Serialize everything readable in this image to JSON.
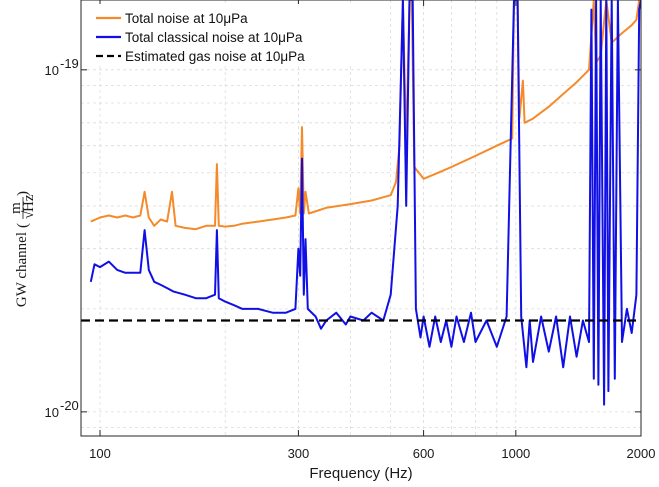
{
  "chart_data": {
    "type": "line",
    "title": "",
    "xlabel": "Frequency (Hz)",
    "ylabel": "GW channel",
    "ylabel_unit_numerator": "m",
    "ylabel_unit_denominator": "Hz",
    "xscale": "log",
    "yscale": "log",
    "xlim": [
      90,
      2000
    ],
    "ylim": [
      8.5e-21,
      1.6e-19
    ],
    "x_ticks": [
      {
        "value": 100,
        "label": "100"
      },
      {
        "value": 300,
        "label": "300"
      },
      {
        "value": 600,
        "label": "600"
      },
      {
        "value": 1000,
        "label": "1000"
      },
      {
        "value": 2000,
        "label": "2000"
      }
    ],
    "y_ticks": [
      {
        "value": 1e-20,
        "base": "10",
        "exp": "-20"
      },
      {
        "value": 1e-19,
        "base": "10",
        "exp": "-19"
      }
    ],
    "grid": true,
    "legend_position": "top-left",
    "series": [
      {
        "name": "Total noise at 10μPa",
        "color": "#f58a2a",
        "style": "solid",
        "points": [
          [
            95,
            3.6e-20
          ],
          [
            100,
            3.7e-20
          ],
          [
            105,
            3.75e-20
          ],
          [
            110,
            3.7e-20
          ],
          [
            115,
            3.75e-20
          ],
          [
            120,
            3.7e-20
          ],
          [
            125,
            3.75e-20
          ],
          [
            128,
            4.4e-20
          ],
          [
            131,
            3.7e-20
          ],
          [
            135,
            3.5e-20
          ],
          [
            140,
            3.65e-20
          ],
          [
            145,
            3.6e-20
          ],
          [
            149,
            4.4e-20
          ],
          [
            152,
            3.5e-20
          ],
          [
            160,
            3.45e-20
          ],
          [
            170,
            3.42e-20
          ],
          [
            180,
            3.5e-20
          ],
          [
            189,
            3.5e-20
          ],
          [
            191,
            5.3e-20
          ],
          [
            193,
            3.5e-20
          ],
          [
            200,
            3.48e-20
          ],
          [
            210,
            3.5e-20
          ],
          [
            220,
            3.55e-20
          ],
          [
            240,
            3.6e-20
          ],
          [
            260,
            3.65e-20
          ],
          [
            280,
            3.7e-20
          ],
          [
            295,
            3.75e-20
          ],
          [
            300,
            4.5e-20
          ],
          [
            303,
            3.8e-20
          ],
          [
            306,
            6.8e-20
          ],
          [
            309,
            3.8e-20
          ],
          [
            312,
            4.4e-20
          ],
          [
            318,
            3.8e-20
          ],
          [
            350,
            3.95e-20
          ],
          [
            400,
            4.05e-20
          ],
          [
            450,
            4.15e-20
          ],
          [
            500,
            4.3e-20
          ],
          [
            515,
            4.7e-20
          ],
          [
            525,
            6e-20
          ],
          [
            535,
            1.6e-19
          ],
          [
            545,
            6e-20
          ],
          [
            555,
            1.6e-19
          ],
          [
            562,
            1.6e-19
          ],
          [
            570,
            5.2e-20
          ],
          [
            600,
            4.8e-20
          ],
          [
            650,
            5e-20
          ],
          [
            700,
            5.2e-20
          ],
          [
            800,
            5.6e-20
          ],
          [
            900,
            6e-20
          ],
          [
            980,
            6.3e-20
          ],
          [
            990,
            1.6e-19
          ],
          [
            1010,
            1.6e-19
          ],
          [
            1020,
            7.2e-20
          ],
          [
            1040,
            9.3e-20
          ],
          [
            1050,
            7e-20
          ],
          [
            1100,
            7.2e-20
          ],
          [
            1200,
            7.8e-20
          ],
          [
            1300,
            8.5e-20
          ],
          [
            1400,
            9.2e-20
          ],
          [
            1500,
            1e-19
          ],
          [
            1540,
            1.6e-19
          ],
          [
            1560,
            1.05e-19
          ],
          [
            1600,
            1.1e-19
          ],
          [
            1650,
            1.6e-19
          ],
          [
            1700,
            1.2e-19
          ],
          [
            1800,
            1.28e-19
          ],
          [
            1900,
            1.35e-19
          ],
          [
            1950,
            1.4e-19
          ],
          [
            1980,
            1.6e-19
          ],
          [
            2000,
            1.6e-19
          ]
        ]
      },
      {
        "name": "Total classical noise at 10μPa",
        "color": "#1010e6",
        "style": "solid",
        "points": [
          [
            95,
            2.4e-20
          ],
          [
            97,
            2.7e-20
          ],
          [
            100,
            2.65e-20
          ],
          [
            105,
            2.75e-20
          ],
          [
            110,
            2.6e-20
          ],
          [
            115,
            2.55e-20
          ],
          [
            120,
            2.55e-20
          ],
          [
            125,
            2.55e-20
          ],
          [
            128,
            3.4e-20
          ],
          [
            131,
            2.6e-20
          ],
          [
            135,
            2.4e-20
          ],
          [
            140,
            2.35e-20
          ],
          [
            145,
            2.3e-20
          ],
          [
            150,
            2.25e-20
          ],
          [
            160,
            2.2e-20
          ],
          [
            170,
            2.15e-20
          ],
          [
            180,
            2.15e-20
          ],
          [
            189,
            2.2e-20
          ],
          [
            191,
            3.4e-20
          ],
          [
            193,
            2.15e-20
          ],
          [
            200,
            2.1e-20
          ],
          [
            210,
            2.05e-20
          ],
          [
            220,
            2e-20
          ],
          [
            240,
            2e-20
          ],
          [
            260,
            1.95e-20
          ],
          [
            280,
            1.95e-20
          ],
          [
            295,
            2e-20
          ],
          [
            300,
            3e-20
          ],
          [
            303,
            2.5e-20
          ],
          [
            306,
            5.5e-20
          ],
          [
            309,
            2.2e-20
          ],
          [
            312,
            3.2e-20
          ],
          [
            316,
            2e-20
          ],
          [
            330,
            1.9e-20
          ],
          [
            340,
            1.75e-20
          ],
          [
            350,
            1.85e-20
          ],
          [
            370,
            1.95e-20
          ],
          [
            390,
            1.8e-20
          ],
          [
            400,
            1.9e-20
          ],
          [
            430,
            1.85e-20
          ],
          [
            450,
            1.95e-20
          ],
          [
            480,
            1.85e-20
          ],
          [
            500,
            2.2e-20
          ],
          [
            520,
            4e-20
          ],
          [
            535,
            1.6e-19
          ],
          [
            545,
            4e-20
          ],
          [
            555,
            1.6e-19
          ],
          [
            565,
            1.6e-19
          ],
          [
            575,
            2e-20
          ],
          [
            590,
            1.65e-20
          ],
          [
            600,
            1.9e-20
          ],
          [
            620,
            1.55e-20
          ],
          [
            640,
            1.9e-20
          ],
          [
            660,
            1.6e-20
          ],
          [
            680,
            1.85e-20
          ],
          [
            700,
            1.55e-20
          ],
          [
            720,
            1.9e-20
          ],
          [
            750,
            1.6e-20
          ],
          [
            780,
            1.95e-20
          ],
          [
            800,
            1.6e-20
          ],
          [
            850,
            1.85e-20
          ],
          [
            900,
            1.55e-20
          ],
          [
            950,
            1.9e-20
          ],
          [
            990,
            1.6e-19
          ],
          [
            1010,
            1.6e-19
          ],
          [
            1030,
            1.9e-20
          ],
          [
            1060,
            1.35e-20
          ],
          [
            1080,
            1.85e-20
          ],
          [
            1100,
            1.4e-20
          ],
          [
            1150,
            1.9e-20
          ],
          [
            1200,
            1.5e-20
          ],
          [
            1250,
            1.9e-20
          ],
          [
            1300,
            1.35e-20
          ],
          [
            1350,
            1.9e-20
          ],
          [
            1400,
            1.45e-20
          ],
          [
            1450,
            1.85e-20
          ],
          [
            1500,
            1.6e-20
          ],
          [
            1520,
            1.5e-19
          ],
          [
            1540,
            1.25e-20
          ],
          [
            1560,
            1.6e-19
          ],
          [
            1580,
            1.2e-20
          ],
          [
            1600,
            1.6e-19
          ],
          [
            1630,
            1.05e-20
          ],
          [
            1650,
            1.6e-19
          ],
          [
            1670,
            1.15e-20
          ],
          [
            1700,
            1.6e-19
          ],
          [
            1730,
            1.25e-20
          ],
          [
            1760,
            1.6e-19
          ],
          [
            1800,
            1.6e-20
          ],
          [
            1850,
            2e-20
          ],
          [
            1900,
            1.7e-20
          ],
          [
            1950,
            2.2e-20
          ],
          [
            1980,
            1.5e-19
          ],
          [
            2000,
            1.6e-19
          ]
        ]
      },
      {
        "name": "Estimated gas noise at 10μPa",
        "color": "#000000",
        "style": "dashed",
        "points": [
          [
            90,
            1.85e-20
          ],
          [
            2000,
            1.85e-20
          ]
        ]
      }
    ]
  }
}
